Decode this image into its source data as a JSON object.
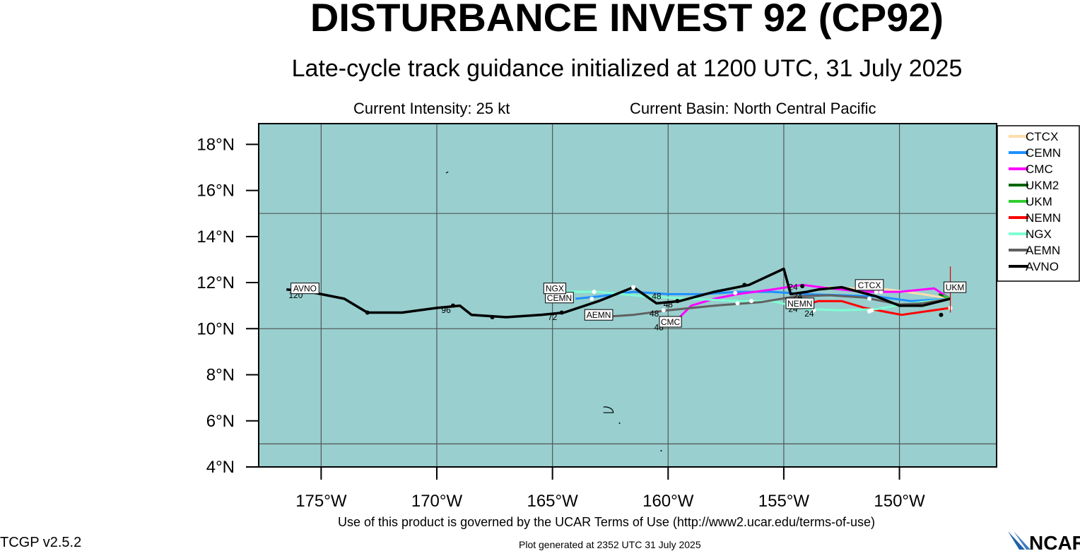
{
  "header": {
    "title": "DISTURBANCE INVEST 92 (CP92)",
    "subtitle": "Late-cycle track guidance initialized at 1200 UTC, 31 July 2025",
    "intensity": "Current Intensity: 25 kt",
    "basin": "Current Basin: North Central Pacific"
  },
  "footer": {
    "terms": "Use of this product is governed by the UCAR Terms of Use (http://www2.ucar.edu/terms-of-use)",
    "version": "TCGP v2.5.2",
    "generated": "Plot generated at 2352 UTC   31 July 2025",
    "logo_text": "NCAR"
  },
  "colors": {
    "ocean": "#99cfcf",
    "grid": "#555555",
    "frame": "#000000",
    "current_position": "#dd0000"
  },
  "chart_data": {
    "type": "line",
    "map_type": "track map",
    "xlim": [
      -177.7,
      -145.8
    ],
    "ylim": [
      4,
      18.9
    ],
    "xticks": [
      {
        "value": -175,
        "label": "175°W"
      },
      {
        "value": -170,
        "label": "170°W"
      },
      {
        "value": -165,
        "label": "165°W"
      },
      {
        "value": -160,
        "label": "160°W"
      },
      {
        "value": -155,
        "label": "155°W"
      },
      {
        "value": -150,
        "label": "150°W"
      }
    ],
    "yticks": [
      {
        "value": 4,
        "label": "4°N"
      },
      {
        "value": 6,
        "label": "6°N"
      },
      {
        "value": 8,
        "label": "8°N"
      },
      {
        "value": 10,
        "label": "10°N"
      },
      {
        "value": 12,
        "label": "12°N"
      },
      {
        "value": 14,
        "label": "14°N"
      },
      {
        "value": 16,
        "label": "16°N"
      },
      {
        "value": 18,
        "label": "18°N"
      }
    ],
    "grid_lon": [
      -175,
      -170,
      -165,
      -160,
      -155,
      -150
    ],
    "grid_lat": [
      5,
      10,
      15
    ],
    "current_position": {
      "lon": -147.8,
      "lat": 11.3
    },
    "series": [
      {
        "name": "CTCX",
        "color": "#ffdead",
        "points": [
          [
            -147.8,
            11.3
          ],
          [
            -149.0,
            11.5
          ],
          [
            -150.5,
            11.7
          ],
          [
            -152.0,
            11.75
          ],
          [
            -153.5,
            11.8
          ]
        ],
        "dots": [
          [
            -150.8,
            11.6
          ]
        ],
        "box": {
          "text": "CTCX",
          "lon": -151.3,
          "lat": 11.9
        }
      },
      {
        "name": "CEMN",
        "color": "#1e90ff",
        "points": [
          [
            -147.8,
            11.3
          ],
          [
            -149.5,
            11.2
          ],
          [
            -151.0,
            11.4
          ],
          [
            -152.5,
            11.45
          ],
          [
            -154.0,
            11.5
          ],
          [
            -155.5,
            11.6
          ],
          [
            -157.0,
            11.6
          ],
          [
            -158.5,
            11.5
          ],
          [
            -160.0,
            11.5
          ],
          [
            -161.5,
            11.6
          ],
          [
            -163.0,
            11.4
          ],
          [
            -164.0,
            11.3
          ]
        ],
        "dots": [
          [
            -151.3,
            11.3
          ],
          [
            -161.5,
            11.8
          ],
          [
            -163.3,
            11.3
          ]
        ],
        "box": {
          "text": "CEMN",
          "lon": -164.7,
          "lat": 11.35
        }
      },
      {
        "name": "CMC",
        "color": "#ff00ff",
        "points": [
          [
            -147.8,
            11.3
          ],
          [
            -148.5,
            11.75
          ],
          [
            -150.0,
            11.6
          ],
          [
            -151.5,
            11.6
          ],
          [
            -153.0,
            11.75
          ],
          [
            -154.2,
            11.9
          ],
          [
            -155.5,
            11.7
          ],
          [
            -157.0,
            11.5
          ],
          [
            -158.0,
            11.3
          ],
          [
            -159.0,
            11.0
          ],
          [
            -159.5,
            10.5
          ]
        ],
        "dots": [],
        "box": {
          "text": "CMC",
          "lon": -159.9,
          "lat": 10.3
        }
      },
      {
        "name": "UKM2",
        "color": "#006400",
        "points": [
          [
            -147.8,
            11.3
          ],
          [
            -148.3,
            11.5
          ]
        ],
        "dots": [],
        "box": null
      },
      {
        "name": "UKM",
        "color": "#32cd32",
        "points": [
          [
            -147.8,
            11.3
          ],
          [
            -148.1,
            11.45
          ]
        ],
        "dots": [],
        "box": {
          "text": "UKM",
          "lon": -147.6,
          "lat": 11.8
        }
      },
      {
        "name": "NEMN",
        "color": "#ff0000",
        "points": [
          [
            -147.8,
            10.9
          ],
          [
            -149.9,
            10.6
          ],
          [
            -151.5,
            10.9
          ],
          [
            -152.5,
            11.2
          ],
          [
            -153.5,
            11.2
          ],
          [
            -154.2,
            11.0
          ]
        ],
        "dots": [
          [
            -147.8,
            10.9
          ],
          [
            -153.7,
            10.8
          ]
        ],
        "box": {
          "text": "NEMN",
          "lon": -154.3,
          "lat": 11.1
        }
      },
      {
        "name": "NGX",
        "color": "#7fffd4",
        "points": [
          [
            -147.8,
            11.3
          ],
          [
            -149.5,
            11.1
          ],
          [
            -151.0,
            10.85
          ],
          [
            -152.5,
            10.8
          ],
          [
            -154.0,
            10.85
          ],
          [
            -155.5,
            11.2
          ],
          [
            -157.0,
            11.2
          ],
          [
            -159.0,
            11.3
          ],
          [
            -161.0,
            11.4
          ],
          [
            -163.0,
            11.6
          ],
          [
            -164.5,
            11.6
          ]
        ],
        "dots": [
          [
            -151.2,
            10.8
          ],
          [
            -156.4,
            11.2
          ],
          [
            -157.0,
            11.1
          ],
          [
            -163.2,
            11.6
          ]
        ],
        "box": {
          "text": "NGX",
          "lon": -164.9,
          "lat": 11.75
        }
      },
      {
        "name": "AEMN",
        "color": "#606060",
        "points": [
          [
            -147.8,
            11.3
          ],
          [
            -149.0,
            11.1
          ],
          [
            -150.0,
            11.05
          ],
          [
            -151.5,
            11.35
          ],
          [
            -153.0,
            11.45
          ],
          [
            -154.5,
            11.4
          ],
          [
            -156.0,
            11.15
          ],
          [
            -158.0,
            11.0
          ],
          [
            -160.0,
            10.8
          ],
          [
            -161.5,
            10.6
          ],
          [
            -163.0,
            10.5
          ]
        ],
        "dots": [
          [
            -160.2,
            10.8
          ]
        ],
        "box": {
          "text": "AEMN",
          "lon": -163.0,
          "lat": 10.6
        }
      },
      {
        "name": "AVNO",
        "color": "#000000",
        "points": [
          [
            -147.8,
            11.3
          ],
          [
            -149.0,
            11.0
          ],
          [
            -150.0,
            11.0
          ],
          [
            -151.0,
            11.4
          ],
          [
            -152.5,
            11.8
          ],
          [
            -153.5,
            11.7
          ],
          [
            -154.0,
            11.6
          ],
          [
            -154.7,
            11.5
          ],
          [
            -155.0,
            12.6
          ],
          [
            -156.5,
            11.9
          ],
          [
            -158.0,
            11.6
          ],
          [
            -159.5,
            11.2
          ],
          [
            -160.5,
            11.1
          ],
          [
            -161.5,
            11.8
          ],
          [
            -163.0,
            11.2
          ],
          [
            -164.5,
            10.7
          ],
          [
            -165.5,
            10.6
          ],
          [
            -167.0,
            10.5
          ],
          [
            -168.5,
            10.6
          ],
          [
            -169.0,
            11.0
          ],
          [
            -170.0,
            10.9
          ],
          [
            -171.5,
            10.7
          ],
          [
            -173.0,
            10.7
          ],
          [
            -174.0,
            11.3
          ],
          [
            -175.5,
            11.6
          ],
          [
            -176.5,
            11.7
          ]
        ],
        "dots": [
          [
            -148.2,
            10.6
          ],
          [
            -154.2,
            11.85
          ],
          [
            -156.7,
            11.9
          ],
          [
            -159.6,
            11.2
          ],
          [
            -164.6,
            10.7
          ],
          [
            -167.6,
            10.5
          ],
          [
            -169.3,
            11.0
          ],
          [
            -173.0,
            10.7
          ]
        ],
        "box": {
          "text": "AVNO",
          "lon": -175.7,
          "lat": 11.75
        }
      }
    ],
    "hour_labels": [
      {
        "text": "120",
        "lon": -176.1,
        "lat": 11.45
      },
      {
        "text": "96",
        "lon": -169.6,
        "lat": 10.8
      },
      {
        "text": "72",
        "lon": -165.0,
        "lat": 10.5
      },
      {
        "text": "48",
        "lon": -160.5,
        "lat": 11.4
      },
      {
        "text": "48",
        "lon": -160.0,
        "lat": 11.05
      },
      {
        "text": "48",
        "lon": -160.6,
        "lat": 10.65
      },
      {
        "text": "48",
        "lon": -160.4,
        "lat": 10.05
      },
      {
        "text": "24",
        "lon": -154.6,
        "lat": 11.8
      },
      {
        "text": "24",
        "lon": -154.4,
        "lat": 11.4
      },
      {
        "text": "24",
        "lon": -154.6,
        "lat": 10.85
      },
      {
        "text": "24",
        "lon": -153.9,
        "lat": 10.65
      }
    ]
  }
}
